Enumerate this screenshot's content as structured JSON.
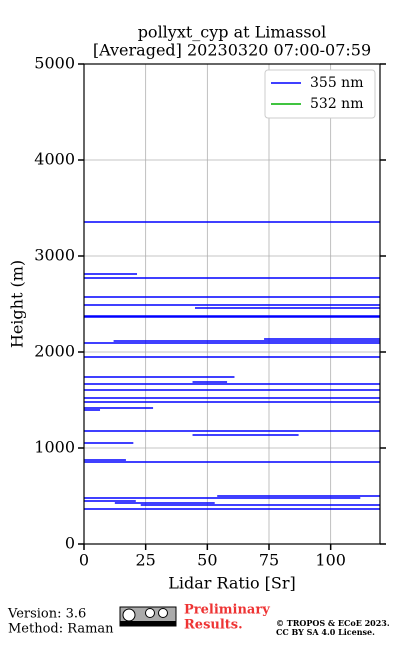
{
  "chart_data": {
    "type": "line",
    "title": "pollyxt_cyp at Limassol",
    "subtitle": "[Averaged] 20230320 07:00-07:59",
    "x_label": "Lidar Ratio [Sr]",
    "y_label": "Height (m)",
    "xlim": [
      0,
      120
    ],
    "xticks": [
      0,
      25,
      50,
      75,
      100
    ],
    "ylim": [
      0,
      5000
    ],
    "yticks": [
      0,
      1000,
      2000,
      3000,
      4000,
      5000
    ],
    "grid": true,
    "legend": "upper right",
    "series": [
      {
        "name": "355 nm",
        "color": "#0000ff",
        "x": [
          0,
          120,
          null,
          0,
          21.5,
          null,
          0,
          120,
          null,
          0,
          120,
          null,
          0,
          120,
          null,
          45,
          120,
          null,
          0,
          120,
          null,
          0,
          120,
          null,
          73,
          120,
          null,
          12,
          120,
          null,
          0,
          120,
          null,
          0,
          120,
          null,
          0,
          61,
          null,
          44,
          58,
          null,
          0,
          120,
          null,
          0,
          120,
          null,
          0,
          120,
          null,
          0,
          120,
          null,
          0,
          28,
          null,
          0,
          6.5,
          null,
          0,
          120,
          null,
          44,
          87,
          null,
          0,
          20,
          null,
          0,
          17,
          null,
          0,
          120,
          null,
          54,
          120,
          null,
          0,
          112,
          null,
          0,
          21,
          null,
          12.5,
          53,
          null,
          23,
          120,
          null,
          0,
          120
        ],
        "values": [
          3354,
          3354,
          null,
          2812,
          2812,
          null,
          2771,
          2771,
          null,
          2573,
          2573,
          null,
          2490,
          2490,
          null,
          2458,
          2458,
          null,
          2375,
          2375,
          null,
          2365,
          2365,
          null,
          2135,
          2135,
          null,
          2115,
          2115,
          null,
          2094,
          2094,
          null,
          1948,
          1948,
          null,
          1740,
          1740,
          null,
          1688,
          1688,
          null,
          1667,
          1667,
          null,
          1604,
          1604,
          null,
          1521,
          1521,
          null,
          1479,
          1479,
          null,
          1417,
          1417,
          null,
          1396,
          1396,
          null,
          1177,
          1177,
          null,
          1135,
          1135,
          null,
          1052,
          1052,
          null,
          875,
          875,
          null,
          854,
          854,
          null,
          500,
          500,
          null,
          479,
          479,
          null,
          448,
          448,
          null,
          427,
          427,
          null,
          406,
          406,
          null,
          365,
          365
        ]
      },
      {
        "name": "532 nm",
        "color": "#00b000",
        "x": [],
        "values": []
      }
    ]
  },
  "footer": {
    "version": "Version: 3.6",
    "method": "Method: Raman",
    "preliminary": [
      "Preliminary",
      "Results."
    ],
    "copyright": [
      "© TROPOS & ECoE 2023.",
      "CC BY SA 4.0 License."
    ]
  }
}
